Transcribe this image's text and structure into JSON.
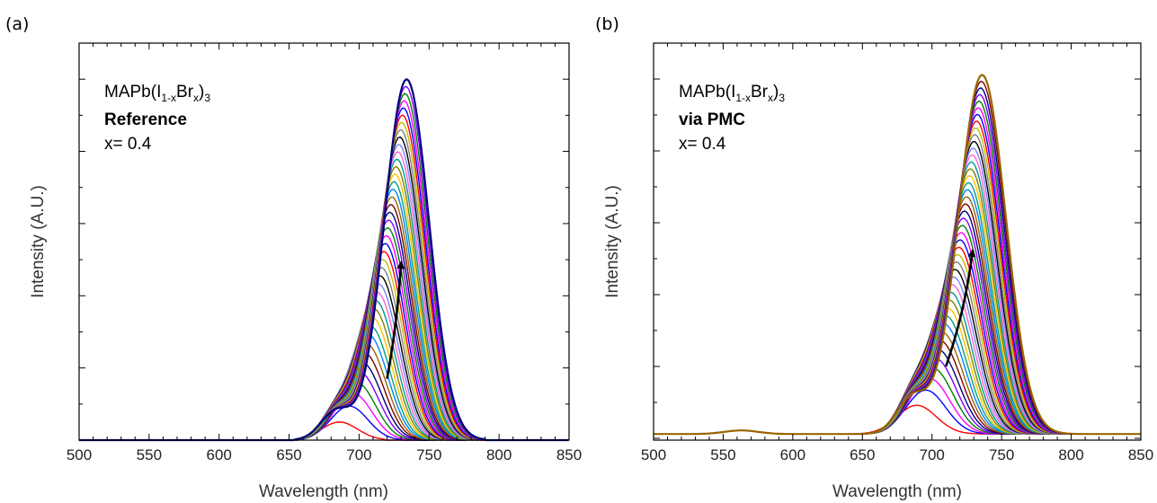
{
  "chart_data": [
    {
      "type": "line",
      "panel_label": "(a)",
      "xlabel": "Wavelength (nm)",
      "ylabel": "Intensity (A.U.)",
      "xlim": [
        500,
        850
      ],
      "xticks": [
        "500",
        "550",
        "600",
        "650",
        "700",
        "750",
        "800",
        "850"
      ],
      "ylim": [
        0,
        1.1
      ],
      "y_tick_labels_shown": false,
      "grid": false,
      "annotation": {
        "formula_main": "MAPb(I",
        "formula_sub1": "1-x",
        "formula_mid": "Br",
        "formula_sub2": "x",
        "formula_end": ")",
        "formula_sub3": "3",
        "method": "Reference",
        "composition": "x= 0.4"
      },
      "arrow": {
        "from": [
          720,
          0.17
        ],
        "to": [
          730,
          0.49
        ]
      },
      "series_count": 42,
      "series_shape": "gaussian",
      "first_series": {
        "peak_nm": 686,
        "width_nm": 13,
        "amplitude": 0.05,
        "shoulder": 0
      },
      "last_series": {
        "peak_nm": 734,
        "width_nm": 16,
        "amplitude": 1.0,
        "shoulder": 0.08
      },
      "shoulder_peak_nm": 684,
      "baseline": 0,
      "colors": [
        "#ff0000",
        "#0000ff",
        "#ff00ff",
        "#008000",
        "#8000ff",
        "#000080",
        "#800000",
        "#996600",
        "#0080ff",
        "#00a080",
        "#ffbf00",
        "#808000",
        "#009999",
        "#ff66cc",
        "#8080ff",
        "#000000",
        "#808080",
        "#c0c000"
      ]
    },
    {
      "type": "line",
      "panel_label": "(b)",
      "xlabel": "Wavelength (nm)",
      "ylabel": "Intensity (A.U.)",
      "xlim": [
        500,
        850
      ],
      "xticks": [
        "500",
        "550",
        "600",
        "650",
        "700",
        "750",
        "800",
        "850"
      ],
      "ylim": [
        -0.005,
        1.1
      ],
      "y_tick_labels_shown": false,
      "grid": false,
      "annotation": {
        "formula_main": "MAPb(I",
        "formula_sub1": "1-x",
        "formula_mid": "Br",
        "formula_sub2": "x",
        "formula_end": ")",
        "formula_sub3": "3",
        "method": "via PMC",
        "composition": "x= 0.4"
      },
      "arrow": {
        "from": [
          710,
          0.2
        ],
        "to": [
          729,
          0.52
        ]
      },
      "series_count": 44,
      "series_shape": "gaussian",
      "first_series": {
        "peak_nm": 689,
        "width_nm": 14,
        "amplitude": 0.08,
        "shoulder": 0
      },
      "last_series": {
        "peak_nm": 736,
        "width_nm": 17,
        "amplitude": 1.0,
        "shoulder": 0.1
      },
      "shoulder_peak_nm": 686,
      "baseline": 0.012,
      "baseline_bump": {
        "peak_nm": 563,
        "width_nm": 12,
        "amplitude": 0.01
      },
      "colors": [
        "#ff0000",
        "#0000ff",
        "#ff00ff",
        "#008000",
        "#8000ff",
        "#000080",
        "#800000",
        "#996600",
        "#0080ff",
        "#00a080",
        "#ffbf00",
        "#808000",
        "#009999",
        "#ff66cc",
        "#8080ff",
        "#000000",
        "#808080",
        "#c0c000"
      ]
    }
  ]
}
